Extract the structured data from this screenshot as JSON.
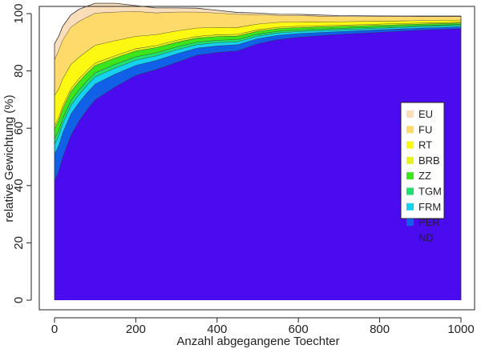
{
  "chart_data": {
    "type": "area",
    "stacked": true,
    "xlabel": "Anzahl abgegangene Toechter",
    "ylabel": "relative Gewichtung (%)",
    "xlim": [
      0,
      1000
    ],
    "ylim": [
      0,
      100
    ],
    "xticks": [
      0,
      200,
      400,
      600,
      800,
      1000
    ],
    "yticks": [
      0,
      20,
      40,
      60,
      80,
      100
    ],
    "grid": false,
    "legend_position": "right",
    "x": [
      0,
      10,
      20,
      40,
      60,
      80,
      100,
      150,
      200,
      250,
      300,
      350,
      400,
      450,
      500,
      550,
      600,
      700,
      800,
      900,
      1000
    ],
    "series": [
      {
        "name": "ND",
        "color": "#4B0BEF",
        "values": [
          41.5,
          45,
          50,
          57.5,
          62.5,
          66.5,
          70,
          74.5,
          78.5,
          80.5,
          83,
          85.5,
          86.5,
          87,
          89.5,
          91,
          91.8,
          92.8,
          93.5,
          94.3,
          94.8
        ]
      },
      {
        "name": "PER",
        "color": "#1060E8",
        "values": [
          9.5,
          9,
          8.5,
          7.5,
          6.5,
          6,
          5.5,
          4.5,
          3.5,
          3.2,
          3,
          2.5,
          2.3,
          2.2,
          1.8,
          1.5,
          1.3,
          1.0,
          0.9,
          0.7,
          0.6
        ]
      },
      {
        "name": "FRM",
        "color": "#15D2F0",
        "values": [
          3.5,
          3.4,
          3.2,
          3,
          2.8,
          2.6,
          2.5,
          2.1,
          1.8,
          1.6,
          1.4,
          1.2,
          1.1,
          1.0,
          0.9,
          0.8,
          0.7,
          0.6,
          0.55,
          0.5,
          0.45
        ]
      },
      {
        "name": "TGM",
        "color": "#20E070",
        "values": [
          2,
          1.9,
          1.8,
          1.7,
          1.6,
          1.5,
          1.4,
          1.3,
          1.2,
          1.1,
          1.0,
          0.9,
          0.85,
          0.8,
          0.7,
          0.6,
          0.55,
          0.5,
          0.45,
          0.4,
          0.4
        ]
      },
      {
        "name": "ZZ",
        "color": "#3CE61C",
        "values": [
          3.5,
          3.4,
          3.3,
          3.1,
          2.9,
          2.7,
          2.5,
          2.2,
          2.0,
          1.8,
          1.6,
          1.4,
          1.3,
          1.2,
          1.0,
          0.9,
          0.8,
          0.7,
          0.6,
          0.5,
          0.5
        ]
      },
      {
        "name": "BRB",
        "color": "#E4F41E",
        "values": [
          1,
          1,
          1,
          1,
          1,
          0.9,
          0.9,
          0.8,
          0.8,
          0.7,
          0.7,
          0.6,
          0.6,
          0.6,
          0.5,
          0.5,
          0.5,
          0.4,
          0.4,
          0.35,
          0.3
        ]
      },
      {
        "name": "RT",
        "color": "#FDF812",
        "values": [
          10.5,
          10,
          9.5,
          8.5,
          7.5,
          6.8,
          6.2,
          5.2,
          4.3,
          3.8,
          3.3,
          2.9,
          2.6,
          2.4,
          2.0,
          1.7,
          1.5,
          1.2,
          1.0,
          0.85,
          0.75
        ]
      },
      {
        "name": "FU",
        "color": "#FDDA6A",
        "values": [
          12.5,
          13.5,
          13.5,
          13,
          12.5,
          11.8,
          11.2,
          10.0,
          8.7,
          7.6,
          6.6,
          5.6,
          5.0,
          4.6,
          3.3,
          2.4,
          2.2,
          1.8,
          1.6,
          1.4,
          1.2
        ]
      },
      {
        "name": "EU",
        "color": "#F9DEB9",
        "values": [
          5.5,
          4.8,
          4.7,
          4.2,
          4.2,
          3.8,
          3.4,
          3.0,
          2.0,
          1.7,
          1.4,
          1.3,
          0.9,
          0.6,
          0.5,
          0.4,
          0.4,
          0.3,
          0.2,
          0.15,
          0.15
        ]
      }
    ],
    "legend_order": [
      "EU",
      "FU",
      "RT",
      "BRB",
      "ZZ",
      "TGM",
      "FRM",
      "PER",
      "ND"
    ]
  }
}
